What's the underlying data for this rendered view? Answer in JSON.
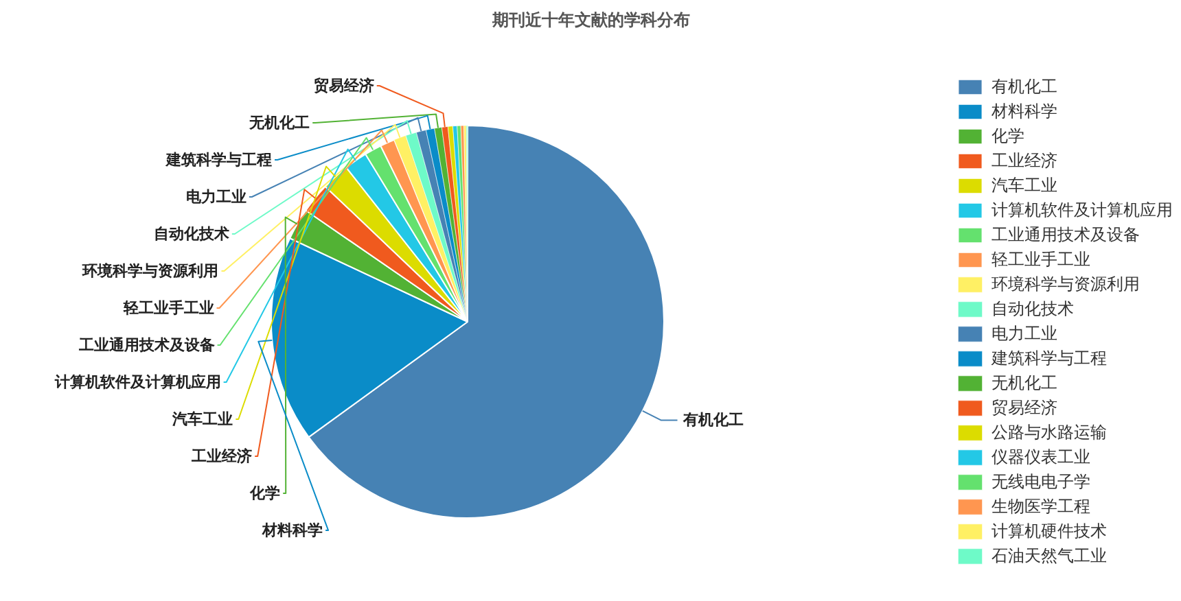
{
  "chart_data": {
    "type": "pie",
    "title": "期刊近十年文献的学科分布",
    "categories": [
      "有机化工",
      "材料科学",
      "化学",
      "工业经济",
      "汽车工业",
      "计算机软件及计算机应用",
      "工业通用技术及设备",
      "轻工业手工业",
      "环境科学与资源利用",
      "自动化技术",
      "电力工业",
      "建筑科学与工程",
      "无机化工",
      "贸易经济",
      "公路与水路运输",
      "仪器仪表工业",
      "无线电电子学",
      "生物医学工程",
      "计算机硬件技术",
      "石油天然气工业"
    ],
    "values": [
      65,
      17,
      2.6,
      2.5,
      2.3,
      1.9,
      1.4,
      1.2,
      1.0,
      0.9,
      0.8,
      0.7,
      0.6,
      0.5,
      0.4,
      0.35,
      0.3,
      0.25,
      0.2,
      0.1
    ],
    "colors": [
      "#4682b4",
      "#0a8cc8",
      "#52b234",
      "#f05a1e",
      "#dcdc00",
      "#23c8e6",
      "#64e16e",
      "#ff9650",
      "#fff064",
      "#6efac8",
      "#4682b4",
      "#0a8cc8",
      "#52b234",
      "#f05a1e",
      "#dcdc00",
      "#23c8e6",
      "#64e16e",
      "#ff9650",
      "#fff064",
      "#6efac8"
    ],
    "value_labels": [
      "有机化工",
      "材料科学",
      "化学",
      "工业经济",
      "汽车工业",
      "计算机软件及计算机应用",
      "工业通用技术及设备",
      "轻工业手工业",
      "环境科学与资源利用",
      "自动化技术",
      "电力工业",
      "建筑科学与工程",
      "无机化工",
      "贸易经济",
      null,
      null,
      null,
      null,
      null,
      null
    ],
    "legend": "right"
  }
}
